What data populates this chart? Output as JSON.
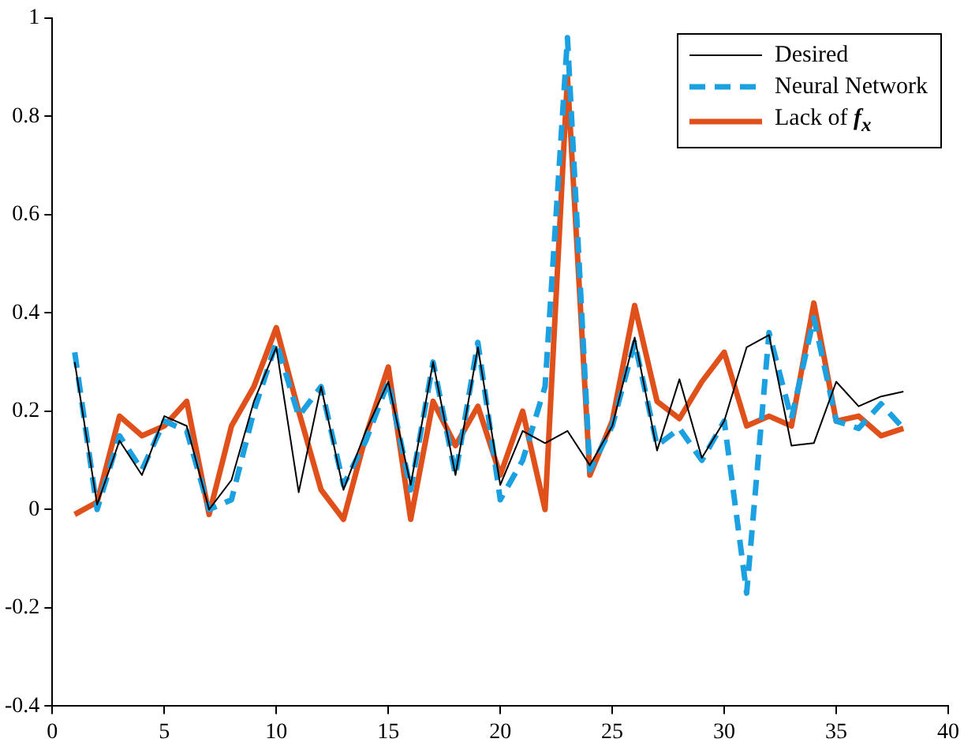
{
  "chart_data": {
    "type": "line",
    "x": [
      1,
      2,
      3,
      4,
      5,
      6,
      7,
      8,
      9,
      10,
      11,
      12,
      13,
      14,
      15,
      16,
      17,
      18,
      19,
      20,
      21,
      22,
      23,
      24,
      25,
      26,
      27,
      28,
      29,
      30,
      31,
      32,
      33,
      34,
      35,
      36,
      37,
      38
    ],
    "series": [
      {
        "name": "Desired",
        "color": "#000000",
        "line_style": "solid",
        "values": [
          0.3,
          0.01,
          0.14,
          0.07,
          0.19,
          0.17,
          0.0,
          0.06,
          0.22,
          0.33,
          0.035,
          0.25,
          0.04,
          0.16,
          0.26,
          0.05,
          0.3,
          0.07,
          0.33,
          0.05,
          0.16,
          0.135,
          0.16,
          0.09,
          0.17,
          0.35,
          0.12,
          0.265,
          0.105,
          0.18,
          0.33,
          0.355,
          0.13,
          0.135,
          0.26,
          0.21,
          0.23,
          0.24
        ]
      },
      {
        "name": "Neural Network",
        "color": "#1ba1e2",
        "line_style": "dashed",
        "values": [
          0.32,
          0.0,
          0.15,
          0.08,
          0.18,
          0.16,
          0.0,
          0.02,
          0.2,
          0.34,
          0.19,
          0.25,
          0.05,
          0.14,
          0.26,
          0.04,
          0.3,
          0.07,
          0.34,
          0.02,
          0.1,
          0.25,
          0.96,
          0.08,
          0.17,
          0.34,
          0.13,
          0.165,
          0.1,
          0.18,
          -0.17,
          0.36,
          0.185,
          0.39,
          0.18,
          0.165,
          0.215,
          0.165
        ]
      },
      {
        "name": "Lack of  f$_{x}$",
        "color": "#e0501b",
        "line_style": "solid",
        "values": [
          -0.01,
          0.015,
          0.19,
          0.15,
          0.17,
          0.22,
          -0.01,
          0.17,
          0.25,
          0.37,
          0.2,
          0.04,
          -0.02,
          0.15,
          0.29,
          -0.02,
          0.22,
          0.13,
          0.21,
          0.07,
          0.2,
          0.0,
          0.88,
          0.07,
          0.18,
          0.415,
          0.22,
          0.185,
          0.26,
          0.32,
          0.17,
          0.19,
          0.17,
          0.42,
          0.18,
          0.19,
          0.15,
          0.165
        ]
      }
    ],
    "xlim": [
      0,
      40
    ],
    "xticks": [
      0,
      5,
      10,
      15,
      20,
      25,
      30,
      35,
      40
    ],
    "ylim": [
      -0.4,
      1
    ],
    "yticks": [
      -0.4,
      -0.2,
      0,
      0.2,
      0.4,
      0.6,
      0.8,
      1
    ],
    "grid": false,
    "legend": "top right",
    "marker": "none"
  }
}
